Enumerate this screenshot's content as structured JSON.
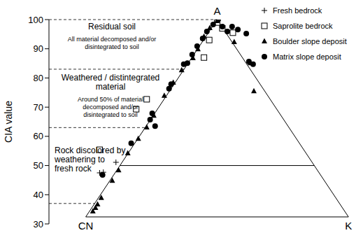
{
  "chart_data": {
    "type": "scatter",
    "ylabel": "CIA value",
    "ylim": [
      30,
      100
    ],
    "yticks": [
      30,
      40,
      50,
      60,
      70,
      80,
      90,
      100
    ],
    "xlim": [
      -14,
      101
    ],
    "tick_labels": "y",
    "legend": "upper right",
    "vertices": [
      {
        "label": "A",
        "x": 50,
        "y": 100
      },
      {
        "label": "CN",
        "x": 0,
        "y": 32.4
      },
      {
        "label": "K",
        "x": 100,
        "y": 32.4
      }
    ],
    "divider": 50,
    "zone_bounds": [
      100,
      83,
      63,
      37
    ],
    "zones": [
      {
        "title": [
          "Residual soil"
        ],
        "note": [
          "All material decomposed and/or",
          "disintegrated to soil"
        ]
      },
      {
        "title": [
          "Weathered / distintegrated",
          "material"
        ],
        "note": [
          "Around 50% of material",
          "decomposed and/or",
          "disintegrated to soil"
        ]
      },
      {
        "title": [
          "Rock discolored by",
          "weathering to",
          "fresh rock"
        ],
        "note": []
      }
    ],
    "series": [
      {
        "name": "Fresh bedrock",
        "color": "#000000",
        "marker": "plus",
        "x": [
          5.3,
          6.7,
          11.5
        ],
        "values": [
          47.5,
          47.7,
          51.1
        ]
      },
      {
        "name": "Saprolite bedrock",
        "color": "#000000",
        "marker": "open_square",
        "x": [
          5.3,
          19.2,
          23.2,
          45,
          47,
          50,
          52,
          56
        ],
        "values": [
          55.4,
          69.3,
          72.7,
          87,
          93,
          99,
          97,
          95.5
        ]
      },
      {
        "name": "Boulder slope deposit",
        "color": "#000000",
        "marker": "triangle",
        "x": [
          2.7,
          3.7,
          4.5,
          5.9,
          10.1,
          12.5,
          16,
          20,
          23.2,
          25.9,
          29.9,
          33.3,
          36.5,
          40.8,
          42.7,
          45,
          47.2,
          49.9,
          56.5,
          62.7,
          64
        ],
        "values": [
          34.3,
          35.5,
          36.7,
          38.9,
          44.8,
          48.4,
          54.2,
          59.2,
          63.1,
          67.1,
          73.9,
          78.4,
          82.7,
          86.8,
          89.9,
          94.2,
          97.1,
          99.5,
          92.3,
          85.1,
          75.5
        ]
      },
      {
        "name": "Matrix slope deposit",
        "color": "#000000",
        "marker": "circle",
        "x": [
          6.4,
          17.3,
          24.5,
          25.3,
          26.4,
          31.7,
          32.5,
          37.3,
          38.7,
          40.5,
          42.4,
          44.5,
          46.1,
          48.5,
          50.4,
          52,
          53.9,
          55.7,
          57.9,
          61.1,
          62.1,
          63.7
        ],
        "values": [
          46.8,
          57.6,
          65.7,
          67.9,
          63.5,
          76.3,
          77.9,
          84.7,
          85.1,
          88,
          90.9,
          93.5,
          95.9,
          98.3,
          100,
          97.6,
          95.9,
          97.6,
          96.6,
          95.2,
          85.6,
          84.7
        ]
      }
    ]
  }
}
